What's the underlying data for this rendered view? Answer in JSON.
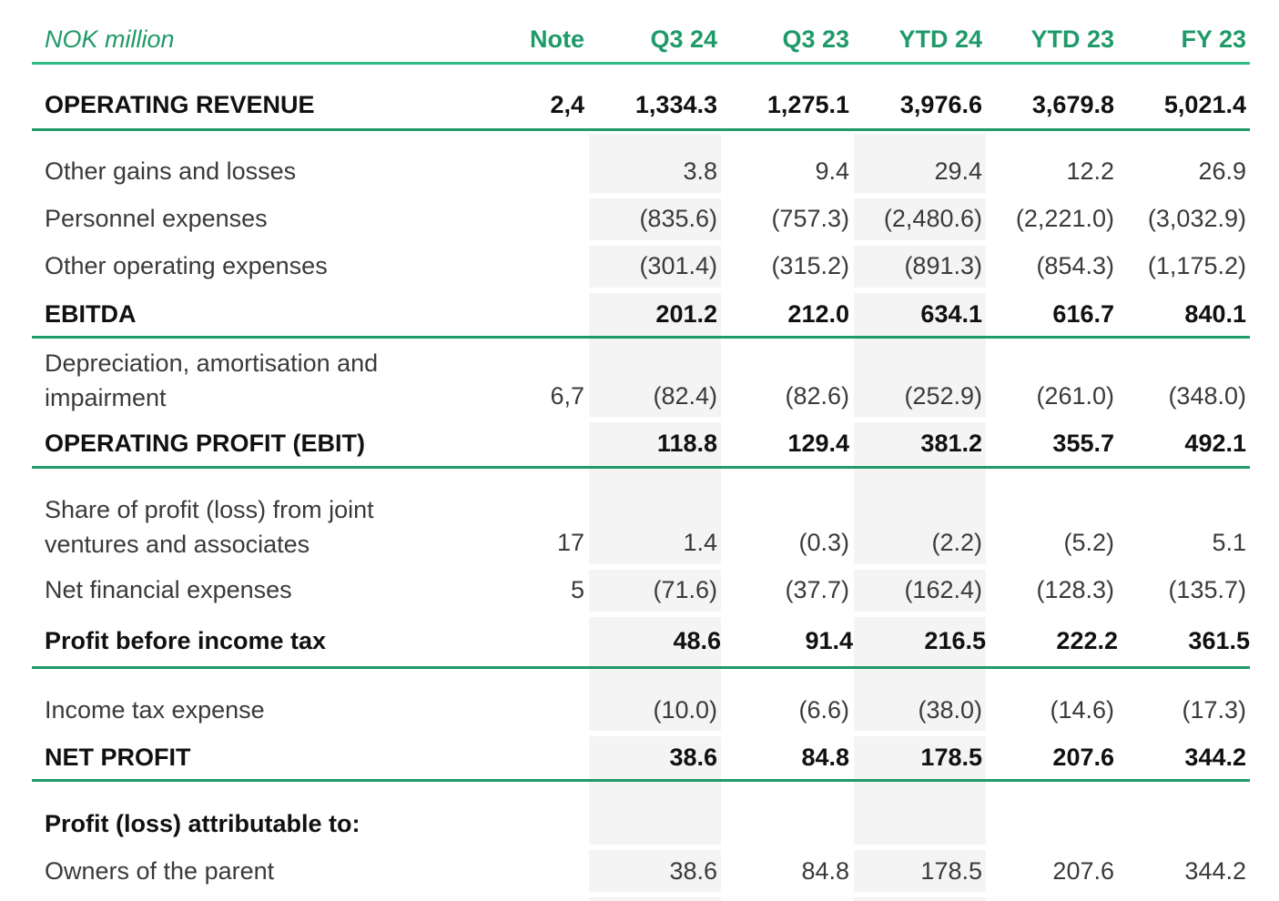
{
  "header": {
    "unit_label": "NOK million",
    "note": "Note",
    "q3_24": "Q3 24",
    "q3_23": "Q3 23",
    "ytd_24": "YTD 24",
    "ytd_23": "YTD 23",
    "fy_23": "FY 23"
  },
  "rows": {
    "operating_revenue": {
      "label": "OPERATING REVENUE",
      "note": "2,4",
      "q3_24": "1,334.3",
      "q3_23": "1,275.1",
      "ytd_24": "3,976.6",
      "ytd_23": "3,679.8",
      "fy_23": "5,021.4"
    },
    "other_gains": {
      "label": "Other gains and losses",
      "note": "",
      "q3_24": "3.8",
      "q3_23": "9.4",
      "ytd_24": "29.4",
      "ytd_23": "12.2",
      "fy_23": "26.9"
    },
    "personnel": {
      "label": "Personnel expenses",
      "note": "",
      "q3_24": "(835.6)",
      "q3_23": "(757.3)",
      "ytd_24": "(2,480.6)",
      "ytd_23": "(2,221.0)",
      "fy_23": "(3,032.9)"
    },
    "other_opex": {
      "label": "Other operating expenses",
      "note": "",
      "q3_24": "(301.4)",
      "q3_23": "(315.2)",
      "ytd_24": "(891.3)",
      "ytd_23": "(854.3)",
      "fy_23": "(1,175.2)"
    },
    "ebitda": {
      "label": "EBITDA",
      "note": "",
      "q3_24": "201.2",
      "q3_23": "212.0",
      "ytd_24": "634.1",
      "ytd_23": "616.7",
      "fy_23": "840.1"
    },
    "depreciation": {
      "label": "Depreciation, amortisation and impairment",
      "note": "6,7",
      "q3_24": "(82.4)",
      "q3_23": "(82.6)",
      "ytd_24": "(252.9)",
      "ytd_23": "(261.0)",
      "fy_23": "(348.0)"
    },
    "ebit": {
      "label": "OPERATING PROFIT (EBIT)",
      "note": "",
      "q3_24": "118.8",
      "q3_23": "129.4",
      "ytd_24": "381.2",
      "ytd_23": "355.7",
      "fy_23": "492.1"
    },
    "share_jv": {
      "label": "Share of profit (loss) from joint ventures and associates",
      "note": "17",
      "q3_24": "1.4",
      "q3_23": "(0.3)",
      "ytd_24": "(2.2)",
      "ytd_23": "(5.2)",
      "fy_23": "5.1"
    },
    "net_financial": {
      "label": "Net financial expenses",
      "note": "5",
      "q3_24": "(71.6)",
      "q3_23": "(37.7)",
      "ytd_24": "(162.4)",
      "ytd_23": "(128.3)",
      "fy_23": "(135.7)"
    },
    "pbt": {
      "label": "Profit before income tax",
      "note": "",
      "q3_24": "48.6",
      "q3_23": "91.4",
      "ytd_24": "216.5",
      "ytd_23": "222.2",
      "fy_23": "361.5"
    },
    "income_tax": {
      "label": "Income tax expense",
      "note": "",
      "q3_24": "(10.0)",
      "q3_23": "(6.6)",
      "ytd_24": "(38.0)",
      "ytd_23": "(14.6)",
      "fy_23": "(17.3)"
    },
    "net_profit": {
      "label": "NET PROFIT",
      "note": "",
      "q3_24": "38.6",
      "q3_23": "84.8",
      "ytd_24": "178.5",
      "ytd_23": "207.6",
      "fy_23": "344.2"
    },
    "attributable_heading": {
      "label": "Profit (loss) attributable to:"
    },
    "owners_parent": {
      "label": "Owners of the parent",
      "note": "",
      "q3_24": "38.6",
      "q3_23": "84.8",
      "ytd_24": "178.5",
      "ytd_23": "207.6",
      "fy_23": "344.2"
    }
  },
  "colors": {
    "accent": "#1f9a6a",
    "shade": "#f4f4f4"
  }
}
